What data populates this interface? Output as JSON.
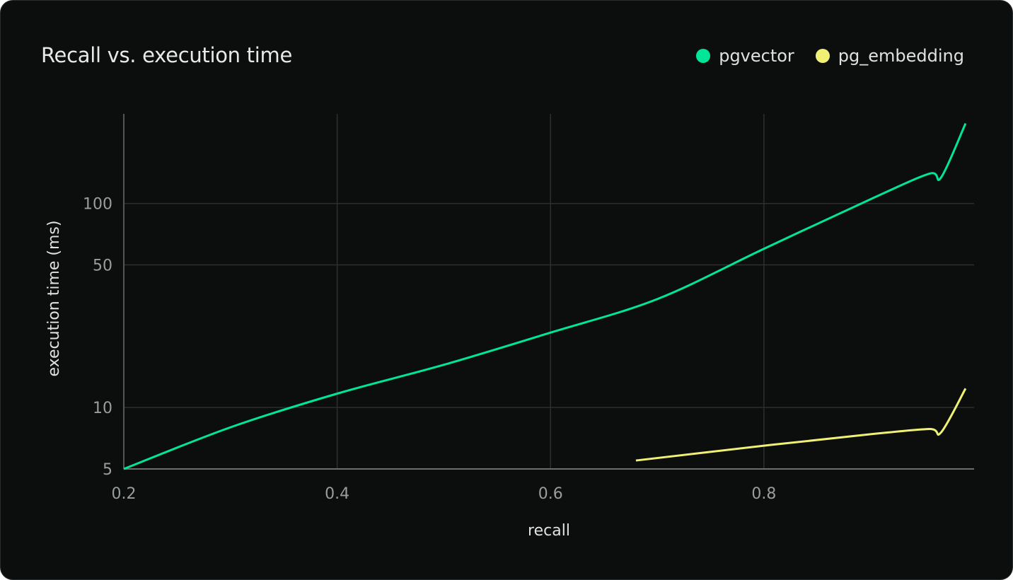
{
  "chart_data": {
    "type": "line",
    "title": "Recall vs. execution time",
    "xlabel": "recall",
    "ylabel": "execution time (ms)",
    "xlim": [
      0.2,
      0.997
    ],
    "ylim": [
      5,
      275
    ],
    "yscale": "log",
    "xticks": [
      "0.2",
      "0.4",
      "0.6",
      "0.8"
    ],
    "yticks": [
      "5",
      "10",
      "50",
      "100"
    ],
    "grid": true,
    "legend_position": "top-right",
    "series": [
      {
        "name": "pgvector",
        "color": "#00e599",
        "x": [
          0.2,
          0.3,
          0.4,
          0.5,
          0.6,
          0.7,
          0.8,
          0.9,
          0.955,
          0.966,
          0.989
        ],
        "y": [
          5,
          8.0,
          11.7,
          16.2,
          23.3,
          34,
          60,
          105,
          140,
          134,
          247
        ]
      },
      {
        "name": "pg_embedding",
        "color": "#f0f075",
        "x": [
          0.68,
          0.8,
          0.9,
          0.955,
          0.966,
          0.989
        ],
        "y": [
          5.5,
          6.5,
          7.4,
          7.85,
          7.55,
          12.4
        ]
      }
    ]
  }
}
